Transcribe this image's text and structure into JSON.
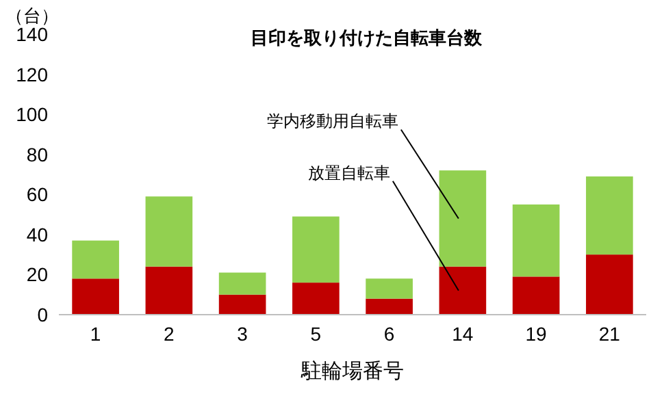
{
  "chart_data": {
    "type": "bar",
    "stacked": true,
    "title": "目印を取り付けた自転車台数",
    "ylabel": "（台）",
    "xlabel": "駐輪場番号",
    "categories": [
      "1",
      "2",
      "3",
      "5",
      "6",
      "14",
      "19",
      "21"
    ],
    "series": [
      {
        "name": "放置自転車",
        "color": "#c00000",
        "values": [
          18,
          24,
          10,
          16,
          8,
          24,
          19,
          30
        ]
      },
      {
        "name": "学内移動用自転車",
        "color": "#92d050",
        "values": [
          19,
          35,
          11,
          33,
          10,
          48,
          36,
          39
        ]
      }
    ],
    "ylim": [
      0,
      140
    ],
    "yticks": [
      0,
      20,
      40,
      60,
      80,
      100,
      120,
      140
    ],
    "grid": false
  }
}
